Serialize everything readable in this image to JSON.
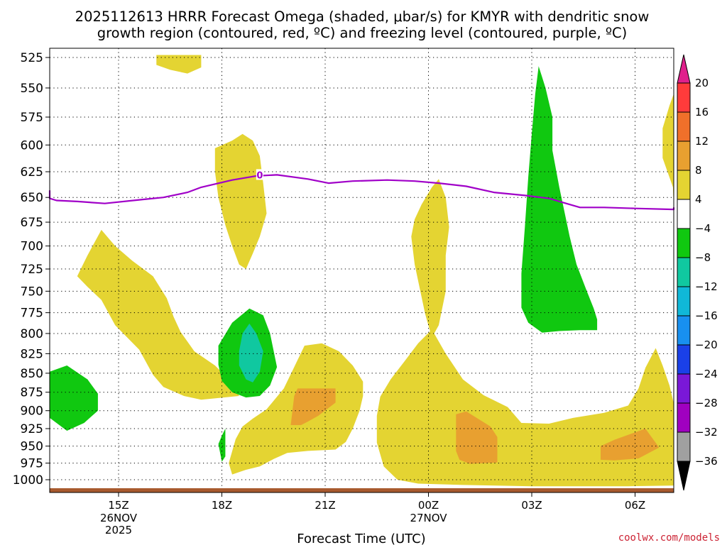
{
  "title_line1": "2025112613 HRRR Forecast Omega (shaded, μbar/s) for KMYR with dendritic snow",
  "title_line2": "growth region (contoured, red, ºC) and freezing level (contoured, purple, ºC)",
  "credit": "coolwx.com/models",
  "chart_data": {
    "type": "heatmap",
    "xlabel": "Forecast Time (UTC)",
    "ylabel": "Pressure (mb)",
    "y_ticks": [
      525,
      550,
      575,
      600,
      625,
      650,
      675,
      700,
      725,
      750,
      775,
      800,
      825,
      850,
      875,
      900,
      925,
      950,
      975,
      1000
    ],
    "ylim": [
      1000,
      525
    ],
    "xlim_hours_from_15Z": [
      -3.2,
      18.9
    ],
    "x_ticks": [
      {
        "hour": 0,
        "label": "15Z",
        "sub1": "26NOV",
        "sub2": "2025"
      },
      {
        "hour": 3,
        "label": "18Z",
        "sub1": "",
        "sub2": ""
      },
      {
        "hour": 6,
        "label": "21Z",
        "sub1": "",
        "sub2": ""
      },
      {
        "hour": 9,
        "label": "00Z",
        "sub1": "27NOV",
        "sub2": ""
      },
      {
        "hour": 12,
        "label": "03Z",
        "sub1": "",
        "sub2": ""
      },
      {
        "hour": 15,
        "label": "06Z",
        "sub1": "",
        "sub2": ""
      }
    ],
    "colorbar": {
      "labels": [
        "20",
        "16",
        "12",
        "8",
        "4",
        "−4",
        "−8",
        "−12",
        "−16",
        "−20",
        "−24",
        "−28",
        "−32",
        "−36"
      ],
      "colors_top_to_bottom": [
        "#ff3b3b",
        "#f0702a",
        "#e8a030",
        "#e4d432",
        "#ffffff",
        "#10c810",
        "#10c8a0",
        "#10b8d8",
        "#1890f0",
        "#1a40e8",
        "#7a18d8",
        "#a000c0",
        "#a0a0a0"
      ],
      "top_arrow_color": "#e0208c",
      "bottom_arrow_color": "#000000"
    },
    "freezing_level": {
      "label": "0",
      "points": [
        [
          -3.2,
          643
        ],
        [
          -2.2,
          651
        ],
        [
          -1.8,
          653
        ],
        [
          -1.2,
          654
        ],
        [
          -0.4,
          656
        ],
        [
          0.7,
          652
        ],
        [
          1.3,
          650
        ],
        [
          2.0,
          645
        ],
        [
          2.4,
          640
        ],
        [
          3.3,
          633
        ],
        [
          4.0,
          629
        ],
        [
          4.6,
          628
        ],
        [
          5.5,
          632
        ],
        [
          6.1,
          636
        ],
        [
          6.8,
          634
        ],
        [
          7.8,
          633
        ],
        [
          8.6,
          634
        ],
        [
          9.3,
          636
        ],
        [
          10.1,
          639
        ],
        [
          10.9,
          645
        ],
        [
          11.8,
          648
        ],
        [
          12.5,
          651
        ],
        [
          13.0,
          656
        ],
        [
          13.4,
          660
        ],
        [
          14.1,
          660
        ],
        [
          15.0,
          661
        ],
        [
          16.2,
          662
        ],
        [
          18.9,
          660
        ]
      ]
    },
    "regions": [
      {
        "name": "pos-4-8",
        "class": "4 to 8",
        "color": "#e4d432",
        "points": [
          [
            1.1,
            523
          ],
          [
            1.1,
            531
          ],
          [
            1.5,
            535
          ],
          [
            2.0,
            538
          ],
          [
            2.4,
            533
          ],
          [
            2.4,
            523
          ]
        ]
      },
      {
        "name": "pos-4-8",
        "class": "4 to 8",
        "color": "#e4d432",
        "points": [
          [
            2.8,
            603
          ],
          [
            3.3,
            596
          ],
          [
            3.6,
            590
          ],
          [
            3.9,
            596
          ],
          [
            4.1,
            610
          ],
          [
            4.2,
            636
          ],
          [
            4.3,
            666
          ],
          [
            4.1,
            690
          ],
          [
            3.9,
            708
          ],
          [
            3.7,
            725
          ],
          [
            3.5,
            720
          ],
          [
            3.3,
            700
          ],
          [
            3.1,
            678
          ],
          [
            2.9,
            650
          ],
          [
            2.8,
            625
          ]
        ]
      },
      {
        "name": "pos-4-8",
        "class": "4 to 8",
        "color": "#e4d432",
        "points": [
          [
            -1.2,
            733
          ],
          [
            -0.9,
            710
          ],
          [
            -0.5,
            683
          ],
          [
            -0.1,
            700
          ],
          [
            0.4,
            716
          ],
          [
            1.0,
            733
          ],
          [
            1.4,
            758
          ],
          [
            1.6,
            780
          ],
          [
            1.8,
            798
          ],
          [
            2.2,
            822
          ],
          [
            2.8,
            840
          ],
          [
            3.3,
            862
          ],
          [
            3.5,
            880
          ],
          [
            2.4,
            885
          ],
          [
            1.9,
            880
          ],
          [
            1.8,
            878
          ],
          [
            1.3,
            868
          ],
          [
            1.0,
            852
          ],
          [
            0.6,
            820
          ],
          [
            -0.1,
            790
          ],
          [
            -0.5,
            760
          ],
          [
            -0.9,
            745
          ]
        ]
      },
      {
        "name": "pos-4-8",
        "class": "4 to 8",
        "color": "#e4d432",
        "points": [
          [
            3.2,
            975
          ],
          [
            3.4,
            940
          ],
          [
            3.6,
            922
          ],
          [
            3.9,
            911
          ],
          [
            4.3,
            898
          ],
          [
            4.8,
            870
          ],
          [
            5.1,
            842
          ],
          [
            5.4,
            815
          ],
          [
            5.9,
            812
          ],
          [
            6.4,
            822
          ],
          [
            6.8,
            840
          ],
          [
            7.1,
            861
          ],
          [
            7.1,
            880
          ],
          [
            7.0,
            900
          ],
          [
            6.8,
            925
          ],
          [
            6.6,
            944
          ],
          [
            6.3,
            955
          ],
          [
            5.5,
            957
          ],
          [
            4.9,
            960
          ],
          [
            4.5,
            969
          ],
          [
            4.1,
            980
          ],
          [
            3.7,
            985
          ],
          [
            3.3,
            992
          ]
        ]
      },
      {
        "name": "pos-4-8",
        "class": "4 to 8",
        "color": "#e4d432",
        "points": [
          [
            8.6,
            672
          ],
          [
            8.8,
            657
          ],
          [
            9.1,
            640
          ],
          [
            9.3,
            632
          ],
          [
            9.5,
            650
          ],
          [
            9.6,
            680
          ],
          [
            9.5,
            710
          ],
          [
            9.5,
            750
          ],
          [
            9.3,
            790
          ],
          [
            9.1,
            805
          ],
          [
            8.9,
            776
          ],
          [
            8.6,
            720
          ],
          [
            8.5,
            690
          ]
        ]
      },
      {
        "name": "pos-4-8",
        "class": "4 to 8",
        "color": "#e4d432",
        "points": [
          [
            7.5,
            907
          ],
          [
            7.6,
            881
          ],
          [
            7.9,
            858
          ],
          [
            8.3,
            835
          ],
          [
            8.7,
            812
          ],
          [
            9.1,
            795
          ],
          [
            9.5,
            825
          ],
          [
            10.0,
            858
          ],
          [
            10.6,
            879
          ],
          [
            11.3,
            895
          ],
          [
            11.7,
            917
          ],
          [
            12.5,
            918
          ],
          [
            13.2,
            910
          ],
          [
            14.1,
            903
          ],
          [
            14.8,
            893
          ],
          [
            15.1,
            870
          ],
          [
            15.3,
            843
          ],
          [
            15.6,
            818
          ],
          [
            15.8,
            840
          ],
          [
            16.0,
            866
          ],
          [
            16.3,
            890
          ],
          [
            16.8,
            907
          ],
          [
            17.5,
            930
          ],
          [
            18.4,
            960
          ],
          [
            18.9,
            977
          ],
          [
            18.9,
            1008
          ],
          [
            17.4,
            1009
          ],
          [
            14.8,
            1010
          ],
          [
            12.0,
            1010
          ],
          [
            10.0,
            1008
          ],
          [
            8.7,
            1006
          ],
          [
            8.1,
            1000
          ],
          [
            7.7,
            980
          ],
          [
            7.5,
            945
          ]
        ]
      },
      {
        "name": "pos-4-8",
        "class": "4 to 8",
        "color": "#e4d432",
        "points": [
          [
            16.2,
            555
          ],
          [
            16.7,
            535
          ],
          [
            17.2,
            523
          ],
          [
            18.9,
            523
          ],
          [
            18.9,
            660
          ],
          [
            18.2,
            665
          ],
          [
            17.7,
            675
          ],
          [
            17.1,
            687
          ],
          [
            16.6,
            673
          ],
          [
            16.2,
            662
          ],
          [
            16.1,
            640
          ],
          [
            15.8,
            612
          ],
          [
            15.8,
            585
          ],
          [
            16.0,
            565
          ]
        ]
      },
      {
        "name": "pos-8-12",
        "class": "8 to 12",
        "color": "#e8a030",
        "points": [
          [
            5.0,
            920
          ],
          [
            5.1,
            880
          ],
          [
            5.2,
            870
          ],
          [
            6.3,
            870
          ],
          [
            6.3,
            889
          ],
          [
            5.8,
            907
          ],
          [
            5.5,
            915
          ],
          [
            5.3,
            920
          ]
        ]
      },
      {
        "name": "pos-8-12",
        "class": "8 to 12",
        "color": "#e8a030",
        "points": [
          [
            9.8,
            957
          ],
          [
            9.8,
            925
          ],
          [
            9.8,
            905
          ],
          [
            10.1,
            901
          ],
          [
            10.8,
            922
          ],
          [
            11.0,
            937
          ],
          [
            11.0,
            974
          ],
          [
            10.2,
            976
          ],
          [
            9.9,
            970
          ]
        ]
      },
      {
        "name": "pos-8-12",
        "class": "8 to 12",
        "color": "#e8a030",
        "points": [
          [
            14.0,
            950
          ],
          [
            14.4,
            941
          ],
          [
            15.3,
            925
          ],
          [
            15.7,
            952
          ],
          [
            15.1,
            968
          ],
          [
            14.4,
            971
          ],
          [
            14.0,
            970
          ]
        ]
      },
      {
        "name": "pos-8-12",
        "class": "8 to 12",
        "color": "#e8a030",
        "points": [
          [
            16.7,
            540
          ],
          [
            17.1,
            525
          ],
          [
            17.6,
            535
          ],
          [
            18.2,
            560
          ],
          [
            18.5,
            590
          ],
          [
            17.8,
            600
          ],
          [
            17.4,
            610
          ],
          [
            16.9,
            600
          ],
          [
            16.8,
            575
          ]
        ]
      },
      {
        "name": "neg-4-8",
        "class": "-4 to -8",
        "color": "#10c810",
        "points": [
          [
            -2.3,
            875
          ],
          [
            -2.0,
            848
          ],
          [
            -1.5,
            840
          ],
          [
            -0.9,
            858
          ],
          [
            -0.6,
            877
          ],
          [
            -0.6,
            900
          ],
          [
            -1.0,
            917
          ],
          [
            -1.5,
            928
          ],
          [
            -2.2,
            910
          ]
        ]
      },
      {
        "name": "neg-4-8",
        "class": "-4 to -8",
        "color": "#10c810",
        "points": [
          [
            2.9,
            839
          ],
          [
            2.9,
            815
          ],
          [
            3.3,
            787
          ],
          [
            3.8,
            770
          ],
          [
            4.2,
            778
          ],
          [
            4.4,
            800
          ],
          [
            4.6,
            842
          ],
          [
            4.4,
            866
          ],
          [
            4.1,
            880
          ],
          [
            3.7,
            882
          ],
          [
            3.3,
            875
          ],
          [
            3.0,
            860
          ]
        ]
      },
      {
        "name": "neg-4-8",
        "class": "-4 to -8",
        "color": "#10c810",
        "points": [
          [
            2.9,
            947
          ],
          [
            3.0,
            935
          ],
          [
            3.1,
            925
          ],
          [
            3.1,
            965
          ],
          [
            3.0,
            973
          ]
        ]
      },
      {
        "name": "neg-4-8",
        "class": "-4 to -8",
        "color": "#10c810",
        "points": [
          [
            11.7,
            769
          ],
          [
            11.7,
            730
          ],
          [
            11.8,
            680
          ],
          [
            11.9,
            630
          ],
          [
            12.0,
            590
          ],
          [
            12.1,
            555
          ],
          [
            12.2,
            532
          ],
          [
            12.4,
            550
          ],
          [
            12.6,
            575
          ],
          [
            12.6,
            605
          ],
          [
            12.8,
            640
          ],
          [
            13.1,
            690
          ],
          [
            13.3,
            720
          ],
          [
            13.6,
            750
          ],
          [
            13.8,
            770
          ],
          [
            13.9,
            783
          ],
          [
            13.9,
            796
          ],
          [
            13.4,
            796
          ],
          [
            12.8,
            797
          ],
          [
            12.3,
            799
          ],
          [
            11.9,
            787
          ]
        ]
      },
      {
        "name": "neg-4-8",
        "class": "-4 to -8",
        "color": "#10c810",
        "points": [
          [
            18.5,
            818
          ],
          [
            18.6,
            795
          ],
          [
            18.8,
            770
          ],
          [
            18.9,
            760
          ],
          [
            18.9,
            868
          ],
          [
            18.8,
            857
          ],
          [
            18.6,
            845
          ]
        ]
      },
      {
        "name": "neg-8-12",
        "class": "-8 to -12",
        "color": "#10c8a0",
        "points": [
          [
            3.5,
            822
          ],
          [
            3.6,
            800
          ],
          [
            3.8,
            788
          ],
          [
            4.0,
            800
          ],
          [
            4.2,
            822
          ],
          [
            4.1,
            848
          ],
          [
            3.9,
            862
          ],
          [
            3.7,
            858
          ],
          [
            3.5,
            840
          ]
        ]
      }
    ]
  }
}
